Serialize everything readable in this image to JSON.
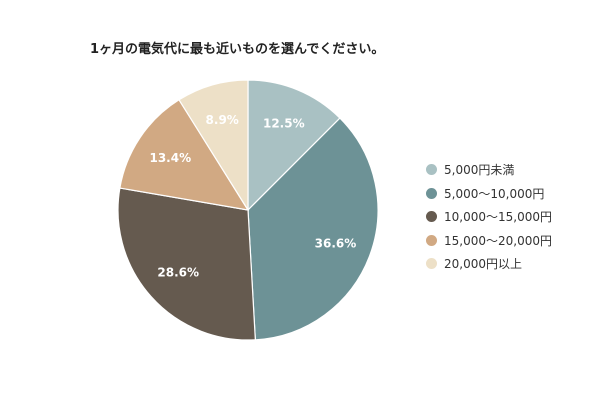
{
  "chart_data": {
    "type": "pie",
    "title": "1ヶ月の電気代に最も近いものを選んでください。",
    "legend_position": "right",
    "categories": [
      "5,000円未満",
      "5,000〜10,000円",
      "10,000〜15,000円",
      "15,000〜20,000円",
      "20,000円以上"
    ],
    "values": [
      12.5,
      36.6,
      28.6,
      13.4,
      8.9
    ],
    "value_labels": [
      "12.5%",
      "36.6%",
      "28.6%",
      "13.4%",
      "8.9%"
    ],
    "colors": [
      "#a9c1c3",
      "#6d9296",
      "#655a4f",
      "#d1a983",
      "#ede0c7"
    ]
  }
}
